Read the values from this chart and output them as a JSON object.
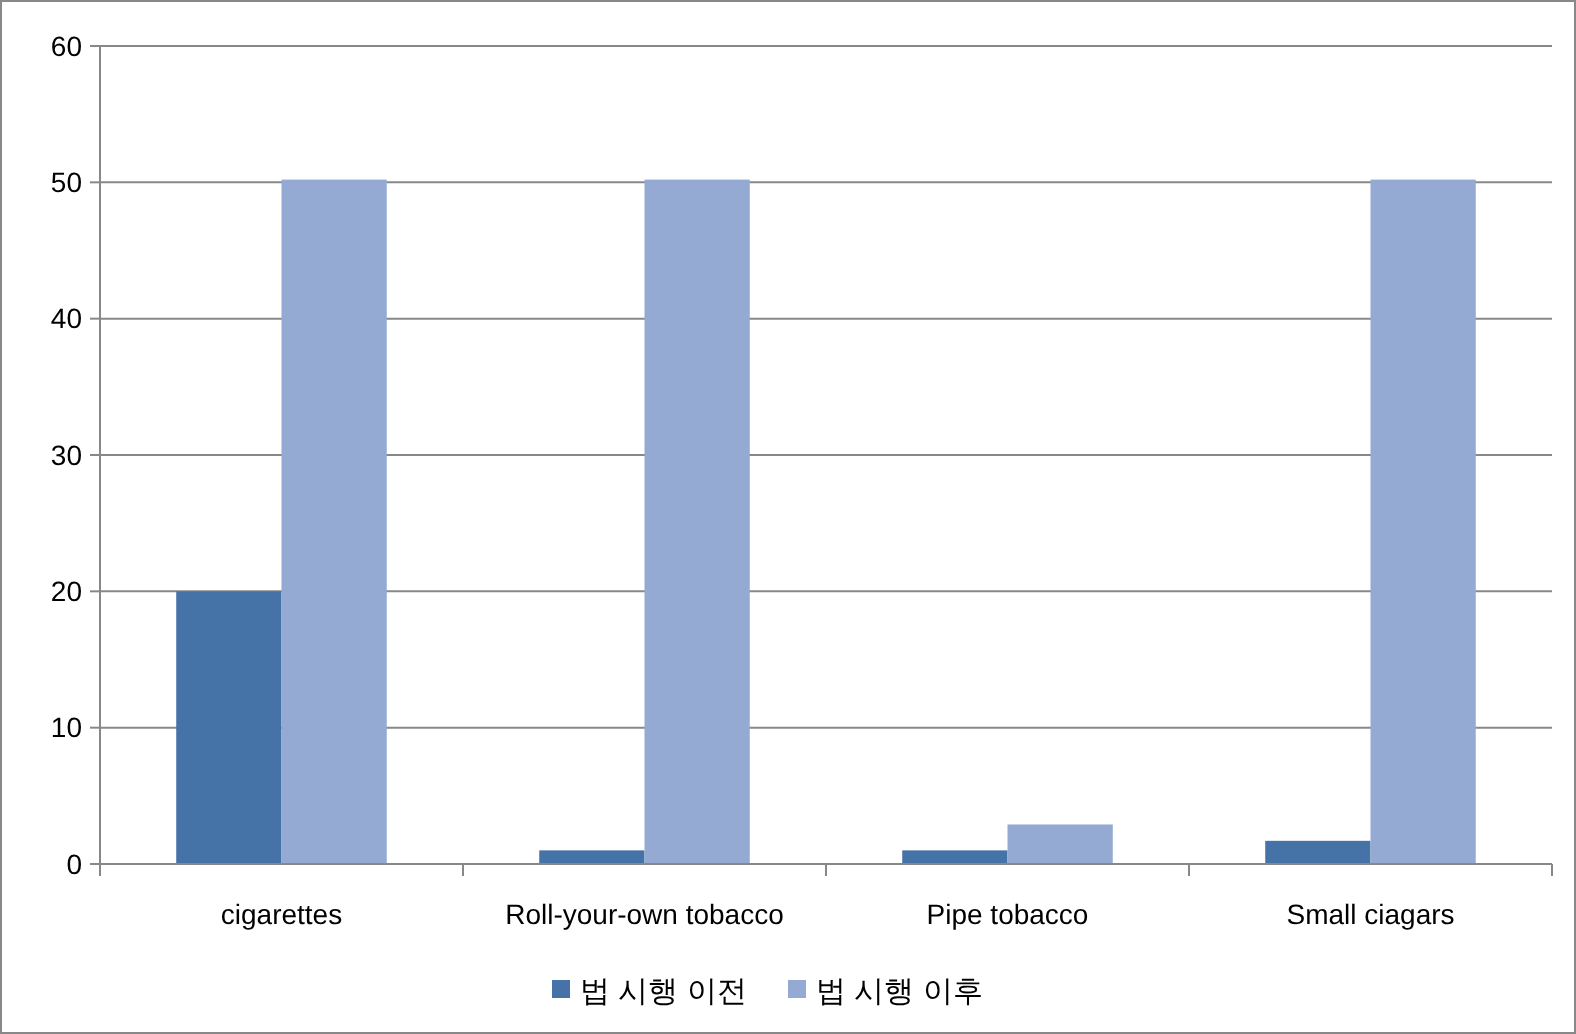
{
  "chart_data": {
    "type": "bar",
    "categories": [
      "cigarettes",
      "Roll-your-own tobacco",
      "Pipe tobacco",
      "Small ciagars"
    ],
    "series": [
      {
        "name": "법 시행 이전",
        "color": "#4572a7",
        "values": [
          20,
          1,
          1,
          1.7
        ]
      },
      {
        "name": "법 시행 이후",
        "color": "#95aad2",
        "values": [
          50.2,
          50.2,
          2.9,
          50.2
        ]
      }
    ],
    "ylim": [
      0,
      60
    ],
    "yticks": [
      0,
      10,
      20,
      30,
      40,
      50,
      60
    ],
    "grid": "y",
    "legend": "bottom"
  }
}
